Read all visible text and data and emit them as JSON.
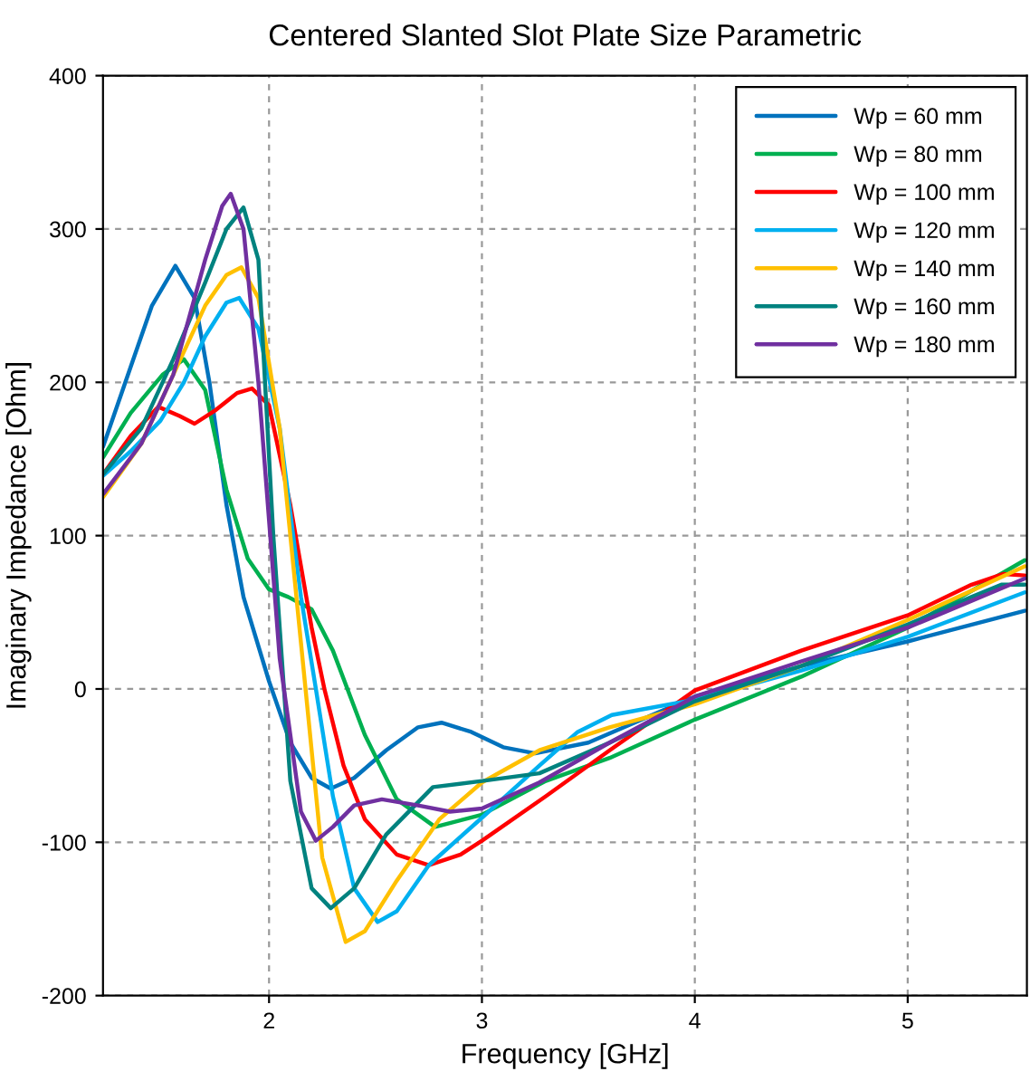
{
  "chart_data": {
    "type": "line",
    "title": "Centered Slanted Slot Plate Size Parametric",
    "xlabel": "Frequency [GHz]",
    "ylabel": "Imaginary Impedance [Ohm]",
    "xlim": [
      1.22,
      5.56
    ],
    "ylim": [
      -200,
      400
    ],
    "xticks": [
      2,
      3,
      4,
      5
    ],
    "yticks": [
      -200,
      -100,
      0,
      100,
      200,
      300,
      400
    ],
    "grid": true,
    "legend": "top right",
    "series": [
      {
        "name": "Wp = 60 mm",
        "color": "#0072bd",
        "x": [
          1.22,
          1.35,
          1.45,
          1.56,
          1.65,
          1.72,
          1.8,
          1.88,
          2.0,
          2.1,
          2.2,
          2.29,
          2.4,
          2.55,
          2.7,
          2.81,
          2.95,
          3.1,
          3.25,
          3.5,
          4.0,
          4.5,
          5.0,
          5.55
        ],
        "values": [
          158,
          210,
          250,
          276,
          255,
          200,
          120,
          60,
          5,
          -35,
          -58,
          -65,
          -58,
          -40,
          -25,
          -22,
          -28,
          -38,
          -42,
          -35,
          -5,
          15,
          31,
          51
        ]
      },
      {
        "name": "Wp = 80 mm",
        "color": "#00b050",
        "x": [
          1.22,
          1.35,
          1.5,
          1.6,
          1.7,
          1.8,
          1.9,
          2.0,
          2.09,
          2.2,
          2.3,
          2.45,
          2.6,
          2.78,
          3.0,
          3.3,
          3.6,
          4.0,
          4.5,
          5.0,
          5.55
        ],
        "values": [
          151,
          180,
          205,
          215,
          195,
          130,
          85,
          65,
          60,
          52,
          25,
          -30,
          -72,
          -90,
          -82,
          -60,
          -45,
          -20,
          8,
          40,
          84
        ]
      },
      {
        "name": "Wp = 100 mm",
        "color": "#ff0000",
        "x": [
          1.22,
          1.35,
          1.48,
          1.58,
          1.65,
          1.75,
          1.85,
          1.92,
          2.0,
          2.1,
          2.2,
          2.26,
          2.35,
          2.45,
          2.6,
          2.75,
          2.9,
          3.0,
          3.3,
          3.6,
          4.0,
          4.5,
          5.0,
          5.3,
          5.45,
          5.55
        ],
        "values": [
          140,
          165,
          184,
          178,
          173,
          182,
          193,
          196,
          185,
          120,
          40,
          0,
          -50,
          -85,
          -108,
          -115,
          -108,
          -99,
          -70,
          -40,
          -1,
          25,
          48,
          68,
          75,
          74
        ]
      },
      {
        "name": "Wp = 120 mm",
        "color": "#00b0f0",
        "x": [
          1.22,
          1.35,
          1.49,
          1.6,
          1.7,
          1.8,
          1.86,
          1.95,
          2.05,
          2.15,
          2.22,
          2.3,
          2.4,
          2.51,
          2.6,
          2.75,
          3.0,
          3.27,
          3.45,
          3.61,
          4.0,
          4.5,
          5.0,
          5.55
        ],
        "values": [
          139,
          155,
          175,
          200,
          230,
          252,
          255,
          235,
          170,
          60,
          0,
          -70,
          -130,
          -152,
          -145,
          -115,
          -84,
          -50,
          -28,
          -17,
          -7,
          12,
          34,
          63
        ]
      },
      {
        "name": "Wp = 140 mm",
        "color": "#ffc000",
        "x": [
          1.22,
          1.4,
          1.55,
          1.7,
          1.8,
          1.87,
          1.95,
          2.05,
          2.15,
          2.25,
          2.36,
          2.45,
          2.6,
          2.8,
          3.0,
          3.27,
          3.6,
          4.0,
          4.5,
          5.0,
          5.55
        ],
        "values": [
          125,
          160,
          205,
          250,
          270,
          275,
          255,
          170,
          30,
          -110,
          -165,
          -158,
          -125,
          -85,
          -61,
          -40,
          -25,
          -10,
          15,
          45,
          80
        ]
      },
      {
        "name": "Wp = 160 mm",
        "color": "#00827f",
        "x": [
          1.22,
          1.4,
          1.55,
          1.7,
          1.8,
          1.88,
          1.95,
          2.02,
          2.1,
          2.2,
          2.29,
          2.4,
          2.55,
          2.77,
          3.0,
          3.27,
          3.6,
          4.0,
          4.5,
          5.0,
          5.3,
          5.44,
          5.55
        ],
        "values": [
          140,
          170,
          215,
          265,
          300,
          314,
          280,
          100,
          -60,
          -130,
          -143,
          -130,
          -95,
          -64,
          -60,
          -55,
          -35,
          -8,
          15,
          42,
          60,
          68,
          68
        ]
      },
      {
        "name": "Wp = 180 mm",
        "color": "#7030a0",
        "x": [
          1.22,
          1.4,
          1.55,
          1.7,
          1.78,
          1.82,
          1.88,
          1.95,
          2.05,
          2.15,
          2.22,
          2.3,
          2.4,
          2.53,
          2.7,
          2.85,
          3.0,
          3.27,
          3.6,
          4.0,
          4.5,
          5.0,
          5.55
        ],
        "values": [
          127,
          160,
          205,
          280,
          315,
          323,
          300,
          200,
          20,
          -80,
          -99,
          -90,
          -76,
          -72,
          -76,
          -80,
          -78,
          -61,
          -35,
          -5,
          18,
          40,
          72
        ]
      }
    ]
  }
}
